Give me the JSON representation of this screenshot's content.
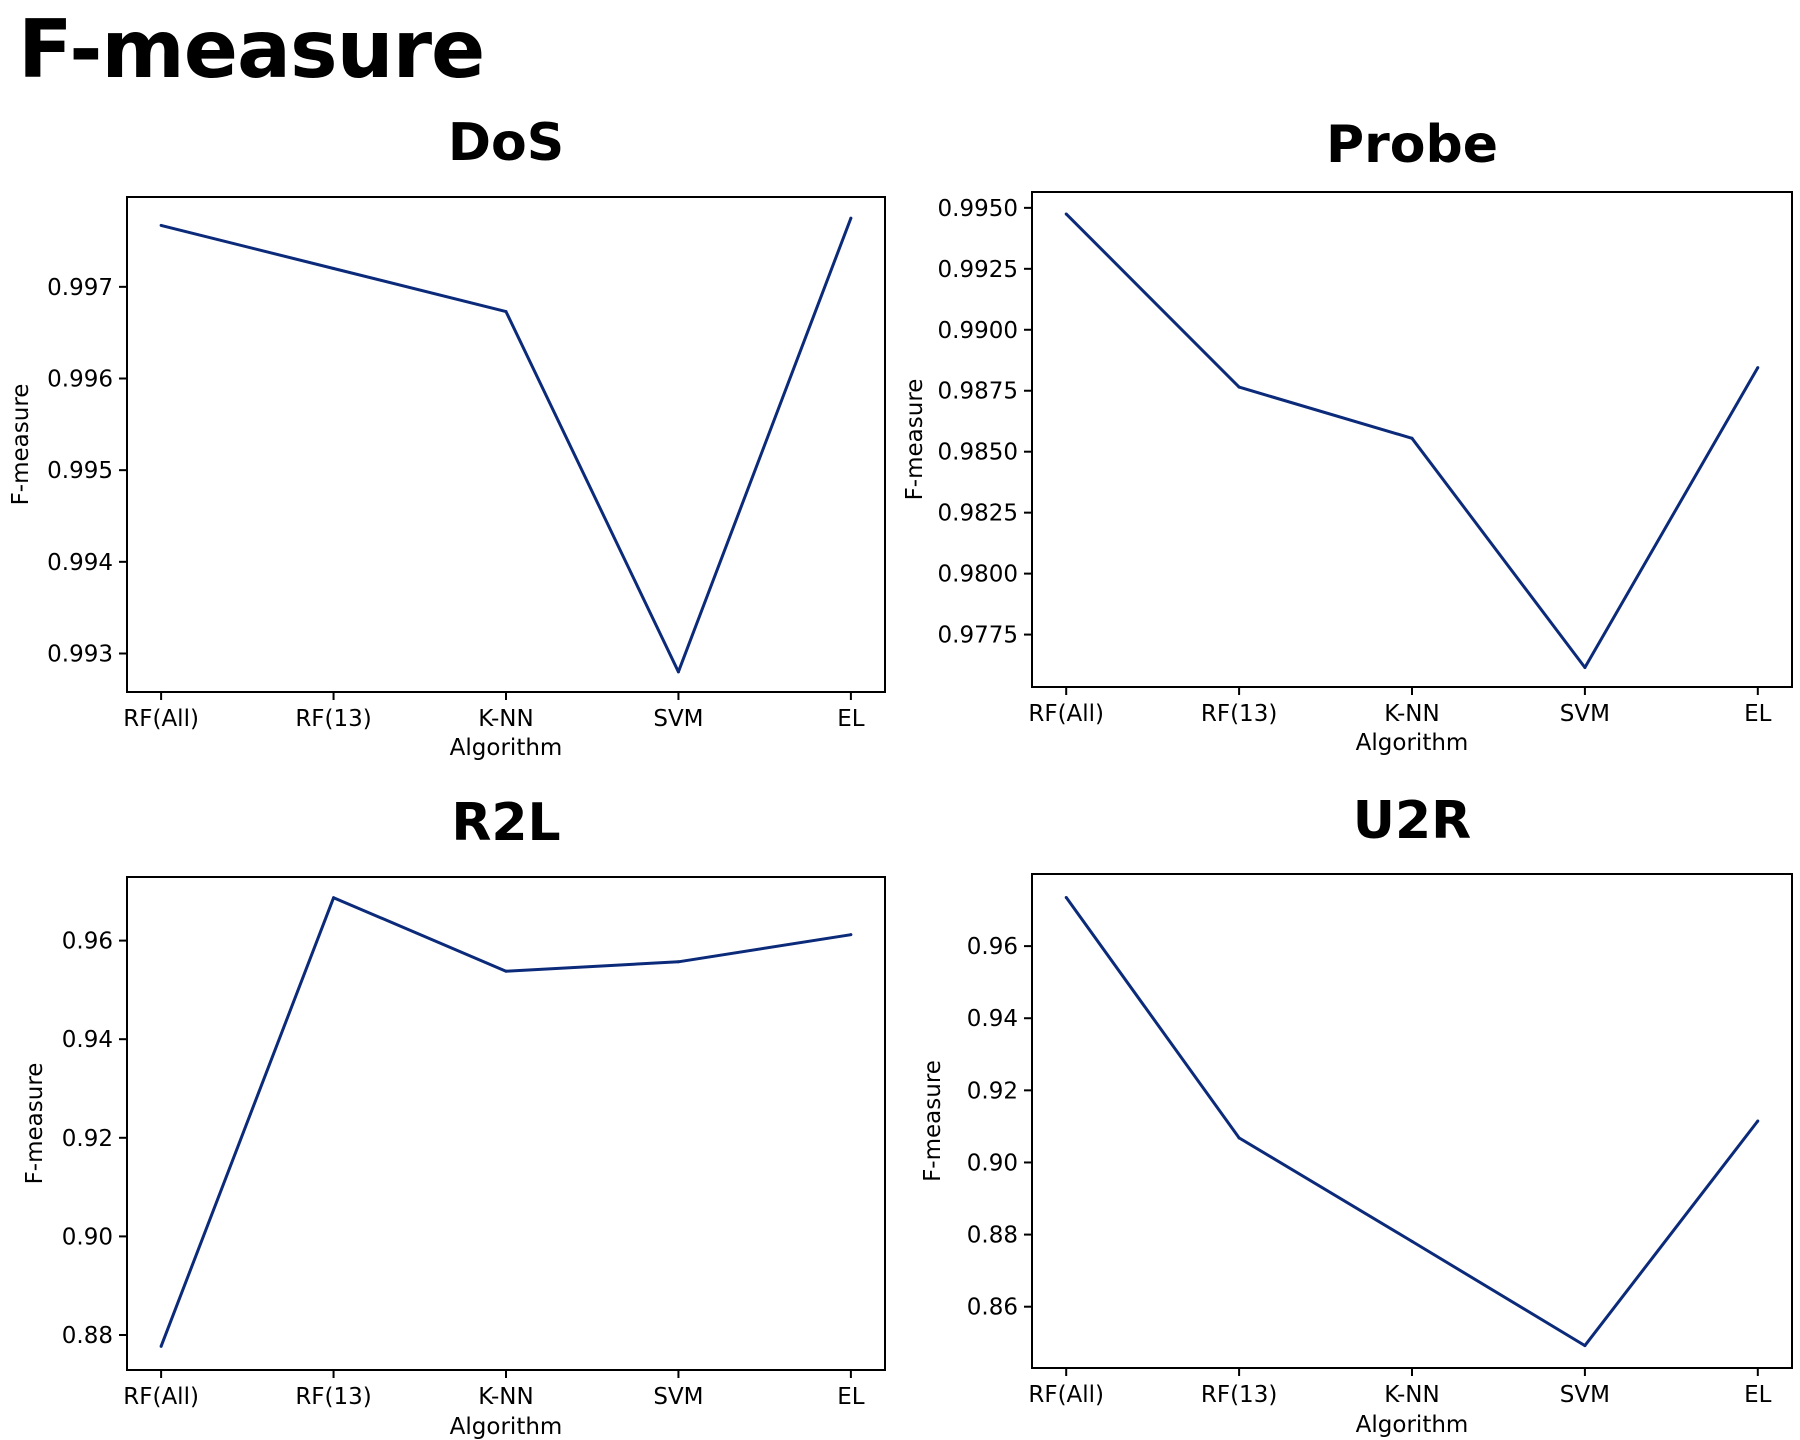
{
  "title": "F-measure",
  "colors": {
    "line": "#0b2a7a",
    "axis": "#000000",
    "background": "#ffffff"
  },
  "chart_data": [
    {
      "type": "line",
      "title": "DoS",
      "xlabel": "Algorithm",
      "ylabel": "F-measure",
      "categories": [
        "RF(All)",
        "RF(13)",
        "K-NN",
        "SVM",
        "EL"
      ],
      "values": [
        0.99767,
        0.9972,
        0.99673,
        0.9928,
        0.99775
      ],
      "ylim": [
        0.99258,
        0.99798
      ],
      "yticks": [
        0.993,
        0.994,
        0.995,
        0.996,
        0.997
      ],
      "ytick_labels": [
        "0.993",
        "0.994",
        "0.995",
        "0.996",
        "0.997"
      ],
      "grid": false
    },
    {
      "type": "line",
      "title": "Probe",
      "xlabel": "Algorithm",
      "ylabel": "F-measure",
      "categories": [
        "RF(All)",
        "RF(13)",
        "K-NN",
        "SVM",
        "EL"
      ],
      "values": [
        0.99475,
        0.98765,
        0.98555,
        0.97615,
        0.98845
      ],
      "ylim": [
        0.97535,
        0.99565
      ],
      "yticks": [
        0.9775,
        0.98,
        0.9825,
        0.985,
        0.9875,
        0.99,
        0.9925,
        0.995
      ],
      "ytick_labels": [
        "0.9775",
        "0.9800",
        "0.9825",
        "0.9850",
        "0.9875",
        "0.9900",
        "0.9925",
        "0.9950"
      ],
      "grid": false
    },
    {
      "type": "line",
      "title": "R2L",
      "xlabel": "Algorithm",
      "ylabel": "F-measure",
      "categories": [
        "RF(All)",
        "RF(13)",
        "K-NN",
        "SVM",
        "EL"
      ],
      "values": [
        0.8777,
        0.9687,
        0.9538,
        0.9557,
        0.9612
      ],
      "ylim": [
        0.8729,
        0.9729
      ],
      "yticks": [
        0.88,
        0.9,
        0.92,
        0.94,
        0.96
      ],
      "ytick_labels": [
        "0.88",
        "0.90",
        "0.92",
        "0.94",
        "0.96"
      ],
      "grid": false
    },
    {
      "type": "line",
      "title": "U2R",
      "xlabel": "Algorithm",
      "ylabel": "F-measure",
      "categories": [
        "RF(All)",
        "RF(13)",
        "K-NN",
        "SVM",
        "EL"
      ],
      "values": [
        0.9735,
        0.9068,
        0.8781,
        0.8492,
        0.9115
      ],
      "ylim": [
        0.843,
        0.98
      ],
      "yticks": [
        0.86,
        0.88,
        0.9,
        0.92,
        0.94,
        0.96
      ],
      "ytick_labels": [
        "0.86",
        "0.88",
        "0.90",
        "0.92",
        "0.94",
        "0.96"
      ],
      "grid": false
    }
  ]
}
